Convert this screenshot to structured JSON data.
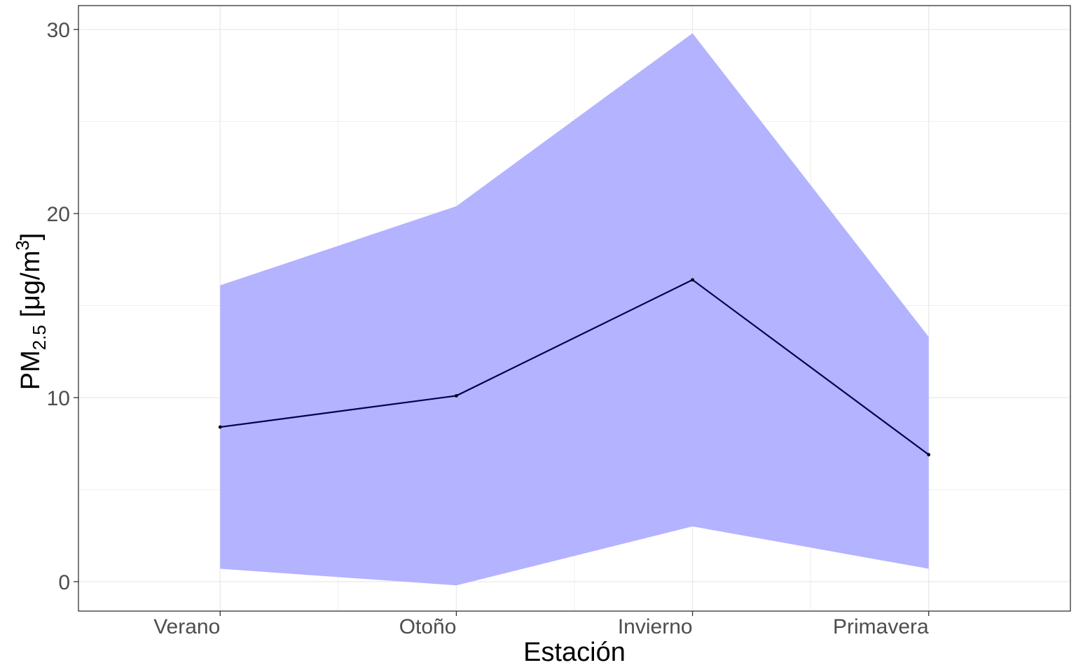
{
  "chart_data": {
    "type": "area",
    "categories": [
      "Verano",
      "Otoño",
      "Invierno",
      "Primavera"
    ],
    "series": [
      {
        "role": "mean-line",
        "values": [
          8.4,
          10.1,
          16.4,
          6.9
        ]
      },
      {
        "role": "band-upper",
        "values": [
          16.1,
          20.4,
          29.8,
          13.3
        ]
      },
      {
        "role": "band-lower",
        "values": [
          0.7,
          -0.2,
          3.0,
          0.7
        ]
      }
    ],
    "xlabel": "Estación",
    "ylabel": {
      "prefix": "PM",
      "subscript": "2.5",
      "unit_open": " [μg/m",
      "superscript": "3",
      "unit_close": "]"
    },
    "ylim": [
      -1.6,
      31.3
    ],
    "yticks": [
      0,
      10,
      20,
      30
    ],
    "grid": true,
    "legend": "none",
    "colors": {
      "band": "#b3b3ff",
      "line": "#00004d",
      "grid": "#ebebeb",
      "border": "#333333",
      "tick_text": "#4d4d4d"
    }
  }
}
